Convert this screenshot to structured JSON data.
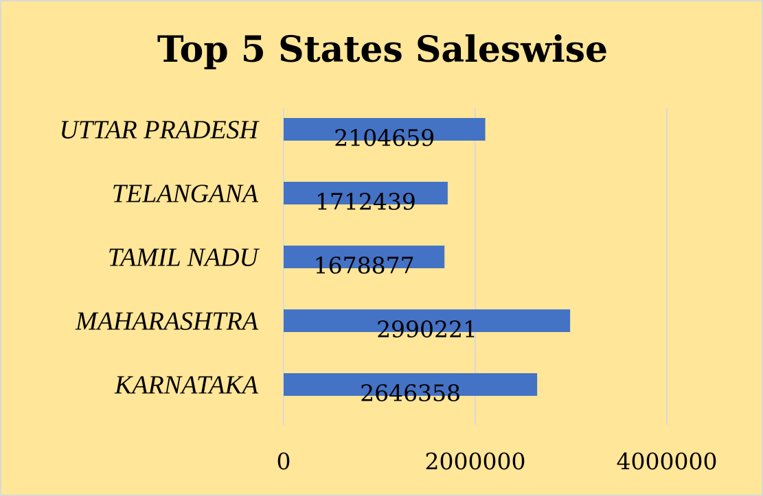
{
  "chart_data": {
    "type": "bar",
    "orientation": "horizontal",
    "title": "Top 5 States Saleswise",
    "xlabel": "",
    "ylabel": "",
    "categories": [
      "UTTAR PRADESH",
      "TELANGANA",
      "TAMIL NADU",
      "MAHARASHTRA",
      "KARNATAKA"
    ],
    "values": [
      2104659,
      1712439,
      1678877,
      2990221,
      2646358
    ],
    "data_labels": [
      "2104659",
      "1712439",
      "1678877",
      "2990221",
      "2646358"
    ],
    "xlim": [
      0,
      4000000
    ],
    "x_ticks": [
      0,
      2000000,
      4000000
    ],
    "x_tick_labels": [
      "0",
      "2000000",
      "4000000"
    ],
    "grid": "vertical",
    "legend": "none",
    "colors": {
      "bar": "#4472c4",
      "background": "#ffe699",
      "gridline": "#d9d9d9"
    }
  }
}
